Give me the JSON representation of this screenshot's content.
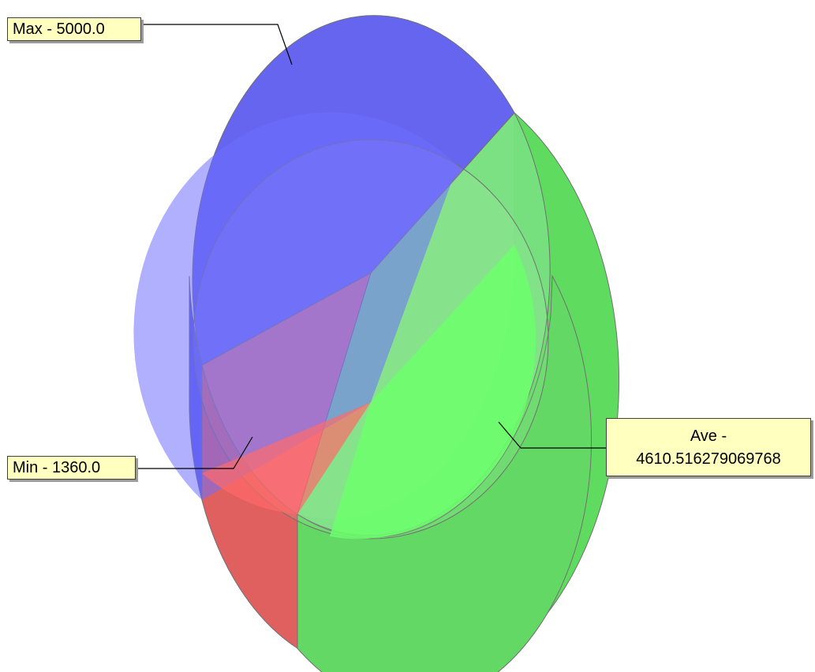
{
  "chart_data": {
    "type": "pie",
    "style": "3d-tilted",
    "slices": [
      {
        "name": "Max",
        "value": 5000.0,
        "label": "Max - 5000.0",
        "color": "#6060f0"
      },
      {
        "name": "Min",
        "value": 1360.0,
        "label": "Min - 1360.0",
        "color": "#e06060"
      },
      {
        "name": "Ave",
        "value": 4610.516279069768,
        "label": "Ave - 4610.516279069768",
        "color": "#60e060"
      }
    ],
    "legend": "none",
    "labels": "callouts"
  }
}
